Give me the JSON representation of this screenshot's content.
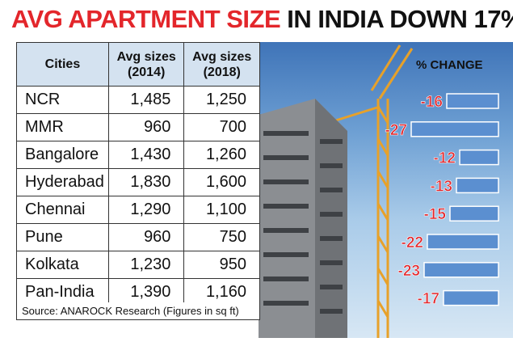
{
  "title": {
    "part1": "AVG APARTMENT SIZE",
    "part2": "IN INDIA DOWN 17%"
  },
  "table": {
    "headers": [
      "Cities",
      "Avg sizes (2014)",
      "Avg sizes (2018)"
    ],
    "rows": [
      {
        "city": "NCR",
        "y2014": "1,485",
        "y2018": "1,250"
      },
      {
        "city": "MMR",
        "y2014": "960",
        "y2018": "700"
      },
      {
        "city": "Bangalore",
        "y2014": "1,430",
        "y2018": "1,260"
      },
      {
        "city": "Hyderabad",
        "y2014": "1,830",
        "y2018": "1,600"
      },
      {
        "city": "Chennai",
        "y2014": "1,290",
        "y2018": "1,100"
      },
      {
        "city": "Pune",
        "y2014": "960",
        "y2018": "750"
      },
      {
        "city": "Kolkata",
        "y2014": "1,230",
        "y2018": "950"
      },
      {
        "city": "Pan-India",
        "y2014": "1,390",
        "y2018": "1,160"
      }
    ]
  },
  "source": "Source: ANAROCK Research (Figures in sq ft)",
  "colors": {
    "title_red": "#e3262b",
    "bar_fill": "#5b8fd0",
    "value_red": "#e3262b",
    "header_bg": "#d4e2f0"
  },
  "chart_data": {
    "type": "bar",
    "title": "% CHANGE",
    "categories": [
      "NCR",
      "MMR",
      "Bangalore",
      "Hyderabad",
      "Chennai",
      "Pune",
      "Kolkata",
      "Pan-India"
    ],
    "values": [
      -16,
      -27,
      -12,
      -13,
      -15,
      -22,
      -23,
      -17
    ],
    "labels": [
      "-16",
      "-27",
      "-12",
      "-13",
      "-15",
      "-22",
      "-23",
      "-17"
    ]
  }
}
